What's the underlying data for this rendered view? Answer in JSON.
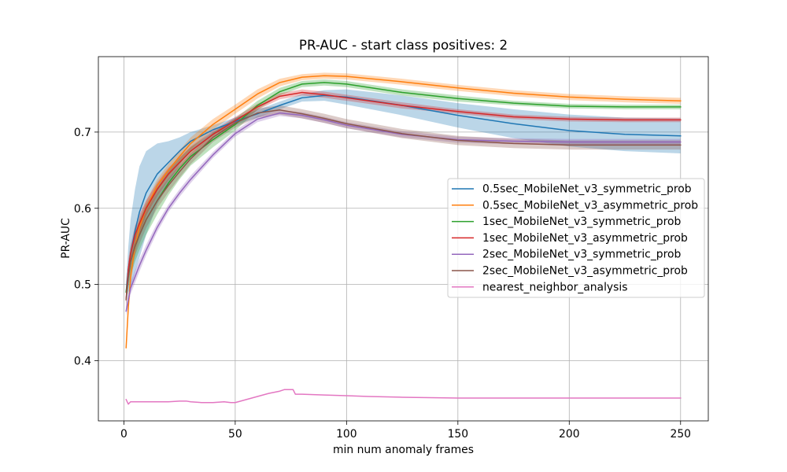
{
  "chart_data": {
    "type": "line",
    "title": "PR-AUC - start class positives: 2",
    "xlabel": "min num anomaly frames",
    "ylabel": "PR-AUC",
    "xlim": [
      -11.45,
      262.45
    ],
    "ylim": [
      0.321,
      0.799
    ],
    "xticks": [
      0,
      50,
      100,
      150,
      200,
      250
    ],
    "xtick_labels": [
      "0",
      "50",
      "100",
      "150",
      "200",
      "250"
    ],
    "yticks": [
      0.4,
      0.5,
      0.6,
      0.7
    ],
    "ytick_labels": [
      "0.4",
      "0.5",
      "0.6",
      "0.7"
    ],
    "grid": true,
    "legend": "center right",
    "x": [
      1,
      2,
      3,
      5,
      7,
      10,
      15,
      20,
      25,
      30,
      40,
      50,
      60,
      70,
      80,
      90,
      100,
      125,
      150,
      175,
      200,
      225,
      250
    ],
    "series": [
      {
        "name": "0.5sec_MobileNet_v3_symmetric_prob",
        "color": "#1f77b4",
        "y": [
          0.49,
          0.52,
          0.54,
          0.57,
          0.595,
          0.62,
          0.645,
          0.66,
          0.675,
          0.688,
          0.703,
          0.714,
          0.724,
          0.735,
          0.745,
          0.748,
          0.746,
          0.735,
          0.722,
          0.711,
          0.702,
          0.697,
          0.695
        ],
        "band": [
          0.015,
          0.03,
          0.045,
          0.055,
          0.06,
          0.055,
          0.04,
          0.028,
          0.018,
          0.012,
          0.006,
          0.005,
          0.005,
          0.005,
          0.005,
          0.007,
          0.01,
          0.013,
          0.016,
          0.019,
          0.021,
          0.022,
          0.023
        ]
      },
      {
        "name": "0.5sec_MobileNet_v3_asymmetric_prob",
        "color": "#ff7f0e",
        "y": [
          0.417,
          0.47,
          0.51,
          0.55,
          0.575,
          0.6,
          0.63,
          0.65,
          0.668,
          0.685,
          0.71,
          0.73,
          0.75,
          0.765,
          0.772,
          0.774,
          0.773,
          0.766,
          0.758,
          0.751,
          0.746,
          0.743,
          0.741
        ],
        "band": [
          0.005,
          0.01,
          0.012,
          0.012,
          0.012,
          0.01,
          0.008,
          0.008,
          0.008,
          0.008,
          0.007,
          0.006,
          0.006,
          0.005,
          0.004,
          0.004,
          0.004,
          0.004,
          0.004,
          0.004,
          0.004,
          0.004,
          0.004
        ]
      },
      {
        "name": "1sec_MobileNet_v3_symmetric_prob",
        "color": "#2ca02c",
        "y": [
          0.49,
          0.51,
          0.53,
          0.55,
          0.565,
          0.585,
          0.61,
          0.633,
          0.652,
          0.668,
          0.69,
          0.71,
          0.735,
          0.753,
          0.763,
          0.765,
          0.763,
          0.752,
          0.744,
          0.738,
          0.734,
          0.733,
          0.733
        ],
        "band": [
          0.01,
          0.015,
          0.018,
          0.02,
          0.02,
          0.02,
          0.018,
          0.016,
          0.014,
          0.012,
          0.01,
          0.008,
          0.006,
          0.005,
          0.004,
          0.004,
          0.004,
          0.004,
          0.004,
          0.003,
          0.003,
          0.003,
          0.003
        ]
      },
      {
        "name": "1sec_MobileNet_v3_asymmetric_prob",
        "color": "#d62728",
        "y": [
          0.48,
          0.52,
          0.54,
          0.565,
          0.58,
          0.6,
          0.625,
          0.645,
          0.66,
          0.675,
          0.697,
          0.715,
          0.733,
          0.747,
          0.752,
          0.749,
          0.745,
          0.735,
          0.727,
          0.72,
          0.717,
          0.716,
          0.716
        ],
        "band": [
          0.01,
          0.012,
          0.012,
          0.012,
          0.012,
          0.01,
          0.009,
          0.008,
          0.007,
          0.006,
          0.005,
          0.005,
          0.004,
          0.004,
          0.004,
          0.004,
          0.004,
          0.004,
          0.003,
          0.003,
          0.003,
          0.003,
          0.003
        ]
      },
      {
        "name": "2sec_MobileNet_v3_symmetric_prob",
        "color": "#9467bd",
        "y": [
          0.465,
          0.48,
          0.495,
          0.51,
          0.525,
          0.545,
          0.575,
          0.6,
          0.62,
          0.638,
          0.67,
          0.698,
          0.717,
          0.725,
          0.722,
          0.716,
          0.709,
          0.697,
          0.69,
          0.688,
          0.687,
          0.687,
          0.687
        ],
        "band": [
          0.006,
          0.008,
          0.008,
          0.008,
          0.008,
          0.007,
          0.006,
          0.005,
          0.005,
          0.005,
          0.004,
          0.004,
          0.004,
          0.004,
          0.004,
          0.004,
          0.004,
          0.004,
          0.004,
          0.004,
          0.004,
          0.004,
          0.004
        ]
      },
      {
        "name": "2sec_MobileNet_v3_asymmetric_prob",
        "color": "#8c564b",
        "y": [
          0.48,
          0.51,
          0.53,
          0.55,
          0.565,
          0.585,
          0.61,
          0.63,
          0.648,
          0.665,
          0.693,
          0.712,
          0.725,
          0.729,
          0.724,
          0.718,
          0.711,
          0.698,
          0.689,
          0.685,
          0.683,
          0.683,
          0.683
        ],
        "band": [
          0.01,
          0.012,
          0.012,
          0.012,
          0.012,
          0.011,
          0.01,
          0.009,
          0.008,
          0.007,
          0.006,
          0.006,
          0.006,
          0.006,
          0.006,
          0.006,
          0.006,
          0.006,
          0.006,
          0.006,
          0.006,
          0.006,
          0.006
        ]
      },
      {
        "name": "nearest_neighbor_analysis",
        "color": "#e377c2",
        "x": [
          1,
          2,
          3,
          5,
          10,
          15,
          20,
          25,
          28,
          30,
          35,
          40,
          45,
          48,
          50,
          55,
          60,
          65,
          70,
          72,
          75,
          76,
          77,
          80,
          90,
          100,
          110,
          125,
          150,
          200,
          250
        ],
        "y": [
          0.349,
          0.343,
          0.346,
          0.346,
          0.346,
          0.346,
          0.346,
          0.347,
          0.347,
          0.346,
          0.345,
          0.345,
          0.346,
          0.345,
          0.345,
          0.349,
          0.353,
          0.357,
          0.36,
          0.362,
          0.362,
          0.362,
          0.356,
          0.356,
          0.355,
          0.354,
          0.353,
          0.352,
          0.351,
          0.351,
          0.351
        ]
      }
    ]
  }
}
